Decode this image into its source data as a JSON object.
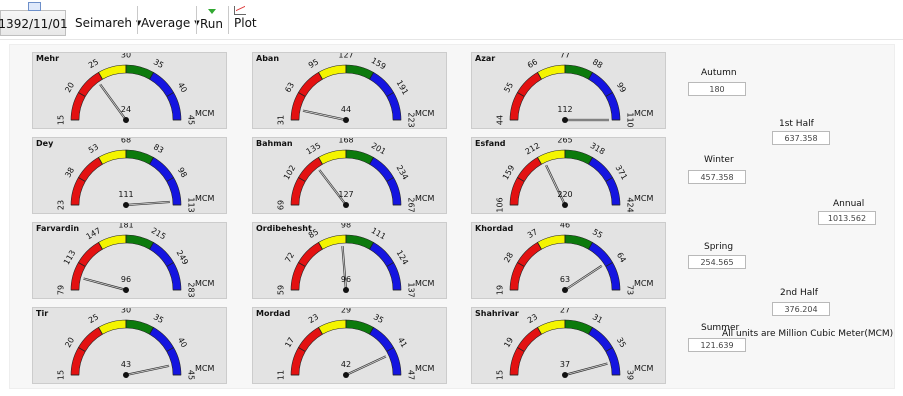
{
  "toolbar": {
    "date": "1392/11/01",
    "station": "Seimareh",
    "statistic": "Average",
    "run_label": "Run",
    "plot_label": "Plot"
  },
  "gauges": [
    {
      "month": "Mehr",
      "ticks": [
        "15",
        "20",
        "25",
        "30",
        "35",
        "40",
        "45"
      ],
      "min": 15,
      "max": 45,
      "value": 24,
      "unit": "MCM"
    },
    {
      "month": "Aban",
      "ticks": [
        "31",
        "63",
        "95",
        "127",
        "159",
        "191",
        "223"
      ],
      "min": 31,
      "max": 223,
      "value": 44,
      "unit": "MCM"
    },
    {
      "month": "Azar",
      "ticks": [
        "44",
        "55",
        "66",
        "77",
        "88",
        "99",
        "110"
      ],
      "min": 44,
      "max": 110,
      "value": 112,
      "unit": "MCM"
    },
    {
      "month": "Dey",
      "ticks": [
        "23",
        "38",
        "53",
        "68",
        "83",
        "98",
        "113"
      ],
      "min": 23,
      "max": 113,
      "value": 111,
      "unit": "MCM"
    },
    {
      "month": "Bahman",
      "ticks": [
        "69",
        "102",
        "135",
        "168",
        "201",
        "234",
        "267"
      ],
      "min": 69,
      "max": 267,
      "value": 127,
      "unit": "MCM"
    },
    {
      "month": "Esfand",
      "ticks": [
        "106",
        "159",
        "212",
        "265",
        "318",
        "371",
        "424"
      ],
      "min": 106,
      "max": 424,
      "value": 220,
      "unit": "MCM"
    },
    {
      "month": "Farvardin",
      "ticks": [
        "79",
        "113",
        "147",
        "181",
        "215",
        "249",
        "283"
      ],
      "min": 79,
      "max": 283,
      "value": 96,
      "unit": "MCM"
    },
    {
      "month": "Ordibehesht",
      "ticks": [
        "59",
        "72",
        "85",
        "98",
        "111",
        "124",
        "137"
      ],
      "min": 59,
      "max": 137,
      "value": 96,
      "unit": "MCM"
    },
    {
      "month": "Khordad",
      "ticks": [
        "19",
        "28",
        "37",
        "46",
        "55",
        "64",
        "73"
      ],
      "min": 19,
      "max": 73,
      "value": 63,
      "unit": "MCM"
    },
    {
      "month": "Tir",
      "ticks": [
        "15",
        "20",
        "25",
        "30",
        "35",
        "40",
        "45"
      ],
      "min": 15,
      "max": 45,
      "value": 43,
      "unit": "MCM"
    },
    {
      "month": "Mordad",
      "ticks": [
        "11",
        "17",
        "23",
        "29",
        "35",
        "41",
        "47"
      ],
      "min": 11,
      "max": 47,
      "value": 42,
      "unit": "MCM"
    },
    {
      "month": "Shahrivar",
      "ticks": [
        "15",
        "19",
        "23",
        "27",
        "31",
        "35",
        "39"
      ],
      "min": 15,
      "max": 39,
      "value": 37,
      "unit": "MCM"
    }
  ],
  "band_colors": {
    "red": "#e31212",
    "yellow": "#f4f400",
    "green": "#0c7a0c",
    "blue": "#1515e0"
  },
  "summary": {
    "autumn_label": "Autumn",
    "autumn_value": "180",
    "winter_label": "Winter",
    "winter_value": "457.358",
    "spring_label": "Spring",
    "spring_value": "254.565",
    "summer_label": "Summer",
    "summer_value": "121.639",
    "half1_label": "1st Half",
    "half1_value": "637.358",
    "half2_label": "2nd Half",
    "half2_value": "376.204",
    "annual_label": "Annual",
    "annual_value": "1013.562",
    "units_note": "All units are Million Cubic Meter(MCM)"
  }
}
